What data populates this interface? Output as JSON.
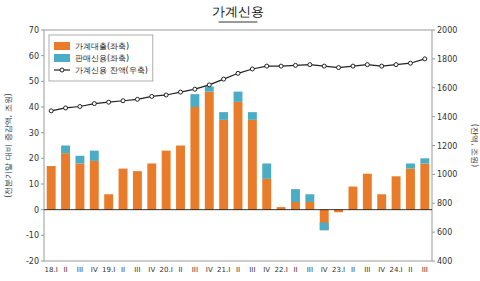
{
  "chart_data": {
    "type": "bar",
    "title": "가계신용",
    "y_label": "(전분기말 대비 증감액, 조원)",
    "y2_label": "(잔액, 조원)",
    "categories": [
      "18.I",
      "II",
      "III",
      "IV",
      "19.I",
      "II",
      "III",
      "IV",
      "20.I",
      "II",
      "III",
      "IV",
      "21.I",
      "II",
      "III",
      "IV",
      "22.I",
      "II",
      "III",
      "IV",
      "23.I",
      "II",
      "III",
      "IV",
      "24.I",
      "II",
      "III"
    ],
    "stacked": true,
    "series": [
      {
        "name": "가계대출(좌축)",
        "color": "#E87C2A",
        "values": [
          17,
          22,
          18,
          19,
          6,
          16,
          15,
          18,
          23,
          25,
          40,
          46,
          35,
          42,
          35,
          12,
          1,
          3,
          3,
          -8,
          -1,
          9,
          14,
          6,
          13,
          16,
          18
        ]
      },
      {
        "name": "판매신용(좌축)",
        "color": "#4BACC6",
        "values": [
          0,
          3,
          3,
          4,
          0,
          0,
          0,
          0,
          0,
          0,
          5,
          2,
          3,
          4,
          3,
          6,
          0,
          5,
          3,
          3,
          0,
          0,
          0,
          0,
          0,
          2,
          2
        ]
      },
      {
        "name": "가계신용 잔액(우축)",
        "type": "line",
        "axis": "y2",
        "color": "#222222",
        "marker": "circle",
        "values": [
          1440,
          1460,
          1470,
          1490,
          1500,
          1510,
          1520,
          1540,
          1550,
          1570,
          1590,
          1620,
          1660,
          1700,
          1730,
          1750,
          1750,
          1755,
          1760,
          1750,
          1740,
          1750,
          1760,
          1750,
          1760,
          1770,
          1800
        ]
      }
    ],
    "ylim": [
      -20,
      70
    ],
    "yticks": [
      -20,
      -10,
      0,
      10,
      20,
      30,
      40,
      50,
      60,
      70
    ],
    "y2lim": [
      400,
      2000
    ],
    "y2ticks": [
      400,
      600,
      800,
      1000,
      1200,
      1400,
      1600,
      1800,
      2000
    ],
    "grid": false,
    "legend": "upper left"
  }
}
